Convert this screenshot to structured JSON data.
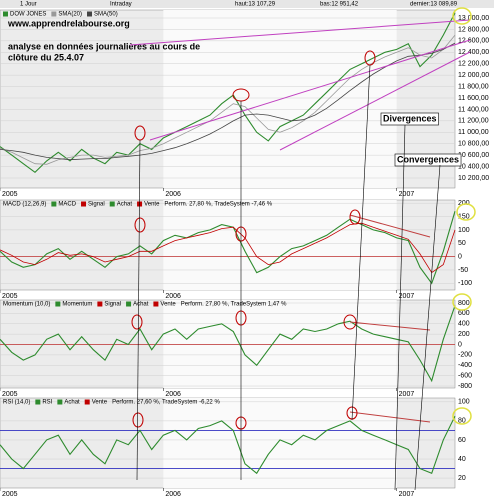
{
  "header": {
    "period": "1 Jour",
    "mode": "Intraday",
    "high": "haut:13 107,29",
    "low": "bas:12 951,42",
    "last": "dernier:13 089,89"
  },
  "chart_data": [
    {
      "type": "line",
      "title": "DOW JONES",
      "annotations": [
        "www.apprendrelabourse.org",
        "analyse en données journalières au cours de",
        "clôture du 25.4.07",
        "Divergences",
        "Convergences"
      ],
      "categories": [
        "2005",
        null,
        null,
        null,
        null,
        null,
        null,
        null,
        null,
        null,
        null,
        null,
        null,
        null,
        "2006",
        null,
        null,
        null,
        null,
        null,
        null,
        null,
        null,
        null,
        null,
        null,
        null,
        null,
        null,
        null,
        null,
        null,
        null,
        null,
        "2007",
        null,
        null,
        null,
        null,
        null
      ],
      "series": [
        {
          "name": "DOW JONES",
          "color": "#2e8b2e",
          "values": [
            10750,
            10600,
            10450,
            10300,
            10500,
            10650,
            10500,
            10700,
            10550,
            10450,
            10650,
            10600,
            10800,
            10700,
            10900,
            11000,
            11100,
            11200,
            11300,
            11500,
            11650,
            11300,
            11000,
            10850,
            11100,
            11200,
            11300,
            11500,
            11700,
            11900,
            12100,
            12200,
            12300,
            12400,
            12450,
            12550,
            12150,
            12350,
            12700,
            13090
          ]
        },
        {
          "name": "SMA(20)",
          "color": "#999999",
          "values": [
            10720,
            10650,
            10550,
            10450,
            10440,
            10520,
            10560,
            10600,
            10600,
            10560,
            10580,
            10600,
            10680,
            10720,
            10800,
            10900,
            11000,
            11100,
            11200,
            11350,
            11500,
            11450,
            11250,
            11050,
            11000,
            11080,
            11200,
            11350,
            11550,
            11750,
            11950,
            12100,
            12220,
            12320,
            12400,
            12480,
            12350,
            12300,
            12450,
            12700
          ]
        },
        {
          "name": "SMA(50)",
          "color": "#444444",
          "values": [
            10700,
            10680,
            10650,
            10600,
            10560,
            10540,
            10520,
            10530,
            10540,
            10540,
            10560,
            10580,
            10600,
            10630,
            10680,
            10730,
            10800,
            10880,
            10970,
            11080,
            11200,
            11300,
            11320,
            11300,
            11250,
            11200,
            11220,
            11300,
            11420,
            11570,
            11730,
            11880,
            12020,
            12140,
            12250,
            12330,
            12350,
            12380,
            12450,
            12560
          ]
        }
      ],
      "ylim": [
        10025,
        13140
      ],
      "yticks": [
        {
          "value": 10200,
          "label": "10 200,00"
        },
        {
          "value": 10400,
          "label": "10 400,00"
        },
        {
          "value": 10600,
          "label": "10 600,00"
        },
        {
          "value": 10800,
          "label": "10 800,00"
        },
        {
          "value": 11000,
          "label": "11 000,00"
        },
        {
          "value": 11200,
          "label": "11 200,00"
        },
        {
          "value": 11400,
          "label": "11 400,00"
        },
        {
          "value": 11600,
          "label": "11 600,00"
        },
        {
          "value": 11800,
          "label": "11 800,00"
        },
        {
          "value": 12000,
          "label": "12 000,00"
        },
        {
          "value": 12200,
          "label": "12 200,00"
        },
        {
          "value": 12400,
          "label": "12 400,00"
        },
        {
          "value": 12600,
          "label": "12 600,00"
        },
        {
          "value": 12800,
          "label": "12 800,00"
        },
        {
          "value": 13000,
          "label": "13 000,00"
        }
      ]
    },
    {
      "type": "line",
      "title": "MACD (12,26,9)",
      "performance": "Perform. 27,80 %, TradeSystem -7,46 %",
      "legend_items": [
        {
          "name": "Achat",
          "color": "#2e8b2e"
        },
        {
          "name": "Vente",
          "color": "#c00000"
        }
      ],
      "categories": [
        "2005",
        null,
        null,
        null,
        null,
        null,
        null,
        null,
        null,
        null,
        null,
        null,
        null,
        null,
        "2006",
        null,
        null,
        null,
        null,
        null,
        null,
        null,
        null,
        null,
        null,
        null,
        null,
        null,
        null,
        null,
        null,
        null,
        null,
        null,
        "2007",
        null,
        null,
        null,
        null,
        null
      ],
      "series": [
        {
          "name": "MACD",
          "color": "#2e8b2e",
          "values": [
            20,
            -20,
            -40,
            -30,
            10,
            30,
            -10,
            20,
            -10,
            -40,
            0,
            10,
            40,
            10,
            60,
            80,
            70,
            90,
            100,
            120,
            110,
            20,
            -60,
            -40,
            0,
            30,
            40,
            60,
            80,
            110,
            140,
            120,
            100,
            90,
            70,
            60,
            -40,
            -100,
            20,
            170
          ]
        },
        {
          "name": "Signal",
          "color": "#c00000",
          "values": [
            25,
            5,
            -20,
            -30,
            -10,
            15,
            5,
            10,
            0,
            -20,
            -10,
            0,
            20,
            20,
            40,
            60,
            70,
            80,
            90,
            105,
            110,
            70,
            0,
            -30,
            -20,
            10,
            30,
            50,
            70,
            95,
            120,
            125,
            110,
            95,
            80,
            65,
            10,
            -60,
            -30,
            100
          ]
        }
      ],
      "ylim": [
        -125,
        212
      ],
      "yticks": [
        -100,
        -50,
        0,
        50,
        100,
        150,
        200
      ]
    },
    {
      "type": "line",
      "title": "Momentum (10,0)",
      "performance": "Perform. 27,80 %, TradeSystem 1,47 %",
      "legend_items": [
        {
          "name": "Signal",
          "color": "#c00000"
        },
        {
          "name": "Achat",
          "color": "#2e8b2e"
        },
        {
          "name": "Vente",
          "color": "#c00000"
        }
      ],
      "categories": [
        "2005",
        null,
        null,
        null,
        null,
        null,
        null,
        null,
        null,
        null,
        null,
        null,
        null,
        null,
        "2006",
        null,
        null,
        null,
        null,
        null,
        null,
        null,
        null,
        null,
        null,
        null,
        null,
        null,
        null,
        null,
        null,
        null,
        null,
        null,
        "2007",
        null,
        null,
        null,
        null,
        null
      ],
      "series": [
        {
          "name": "Momentum",
          "color": "#2e8b2e",
          "values": [
            100,
            -150,
            -300,
            -200,
            100,
            200,
            -100,
            150,
            -100,
            -300,
            100,
            0,
            300,
            -100,
            200,
            300,
            100,
            300,
            350,
            400,
            250,
            -200,
            -400,
            -100,
            200,
            100,
            300,
            250,
            300,
            400,
            450,
            300,
            200,
            150,
            100,
            50,
            -300,
            -700,
            100,
            750
          ]
        }
      ],
      "ylim": [
        -838,
        858
      ],
      "yticks": [
        -800,
        -600,
        -400,
        -200,
        0,
        200,
        400,
        600,
        800
      ]
    },
    {
      "type": "line",
      "title": "RSI (14,0)",
      "performance": "Perform. 27,60 %, TradeSystem -6,22 %",
      "legend_items": [
        {
          "name": "Achat",
          "color": "#2e8b2e"
        },
        {
          "name": "Vente",
          "color": "#c00000"
        }
      ],
      "categories": [
        "2005",
        null,
        null,
        null,
        null,
        null,
        null,
        null,
        null,
        null,
        null,
        null,
        null,
        null,
        "2006",
        null,
        null,
        null,
        null,
        null,
        null,
        null,
        null,
        null,
        null,
        null,
        null,
        null,
        null,
        null,
        null,
        null,
        null,
        null,
        "2007",
        null,
        null,
        null,
        null,
        null
      ],
      "series": [
        {
          "name": "RSI",
          "color": "#2e8b2e",
          "values": [
            55,
            40,
            30,
            45,
            60,
            65,
            45,
            60,
            45,
            35,
            60,
            55,
            70,
            50,
            65,
            70,
            60,
            72,
            75,
            80,
            70,
            35,
            25,
            45,
            60,
            55,
            65,
            60,
            70,
            75,
            80,
            70,
            65,
            60,
            55,
            50,
            30,
            25,
            60,
            85
          ]
        }
      ],
      "levels": [
        70,
        30
      ],
      "ylim": [
        9.6,
        104
      ],
      "yticks": [
        20,
        40,
        60,
        80,
        100
      ]
    }
  ]
}
